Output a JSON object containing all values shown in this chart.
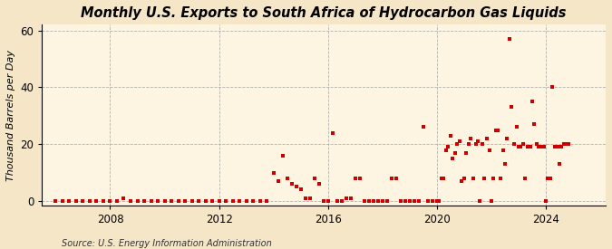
{
  "title": "Monthly U.S. Exports to South Africa of Hydrocarbon Gas Liquids",
  "ylabel": "Thousand Barrels per Day",
  "source": "Source: U.S. Energy Information Administration",
  "outer_bg": "#f5e6c8",
  "inner_bg": "#fdf5e2",
  "dot_color": "#cc0000",
  "xlim": [
    2005.5,
    2026.2
  ],
  "ylim": [
    -1.5,
    62
  ],
  "yticks": [
    0,
    20,
    40,
    60
  ],
  "xticks": [
    2008,
    2012,
    2016,
    2020,
    2024
  ],
  "data": [
    [
      2006.0,
      0
    ],
    [
      2006.25,
      0
    ],
    [
      2006.5,
      0
    ],
    [
      2006.75,
      0
    ],
    [
      2007.0,
      0
    ],
    [
      2007.25,
      0
    ],
    [
      2007.5,
      0
    ],
    [
      2007.75,
      0
    ],
    [
      2008.0,
      0
    ],
    [
      2008.25,
      0
    ],
    [
      2008.5,
      1
    ],
    [
      2008.75,
      0
    ],
    [
      2009.0,
      0
    ],
    [
      2009.25,
      0
    ],
    [
      2009.5,
      0
    ],
    [
      2009.75,
      0
    ],
    [
      2010.0,
      0
    ],
    [
      2010.25,
      0
    ],
    [
      2010.5,
      0
    ],
    [
      2010.75,
      0
    ],
    [
      2011.0,
      0
    ],
    [
      2011.25,
      0
    ],
    [
      2011.5,
      0
    ],
    [
      2011.75,
      0
    ],
    [
      2012.0,
      0
    ],
    [
      2012.25,
      0
    ],
    [
      2012.5,
      0
    ],
    [
      2012.75,
      0
    ],
    [
      2013.0,
      0
    ],
    [
      2013.25,
      0
    ],
    [
      2013.5,
      0
    ],
    [
      2013.75,
      0
    ],
    [
      2014.0,
      10
    ],
    [
      2014.17,
      7
    ],
    [
      2014.33,
      16
    ],
    [
      2014.5,
      8
    ],
    [
      2014.67,
      6
    ],
    [
      2014.83,
      5
    ],
    [
      2015.0,
      4
    ],
    [
      2015.17,
      1
    ],
    [
      2015.33,
      1
    ],
    [
      2015.5,
      8
    ],
    [
      2015.67,
      6
    ],
    [
      2015.83,
      0
    ],
    [
      2016.0,
      0
    ],
    [
      2016.17,
      24
    ],
    [
      2016.33,
      0
    ],
    [
      2016.5,
      0
    ],
    [
      2016.67,
      1
    ],
    [
      2016.83,
      1
    ],
    [
      2017.0,
      8
    ],
    [
      2017.17,
      8
    ],
    [
      2017.33,
      0
    ],
    [
      2017.5,
      0
    ],
    [
      2017.67,
      0
    ],
    [
      2017.83,
      0
    ],
    [
      2018.0,
      0
    ],
    [
      2018.17,
      0
    ],
    [
      2018.33,
      8
    ],
    [
      2018.5,
      8
    ],
    [
      2018.67,
      0
    ],
    [
      2018.83,
      0
    ],
    [
      2019.0,
      0
    ],
    [
      2019.17,
      0
    ],
    [
      2019.33,
      0
    ],
    [
      2019.5,
      26
    ],
    [
      2019.67,
      0
    ],
    [
      2019.83,
      0
    ],
    [
      2020.0,
      0
    ],
    [
      2020.08,
      0
    ],
    [
      2020.17,
      8
    ],
    [
      2020.25,
      8
    ],
    [
      2020.33,
      18
    ],
    [
      2020.42,
      19
    ],
    [
      2020.5,
      23
    ],
    [
      2020.58,
      15
    ],
    [
      2020.67,
      17
    ],
    [
      2020.75,
      20
    ],
    [
      2020.83,
      21
    ],
    [
      2020.92,
      7
    ],
    [
      2021.0,
      8
    ],
    [
      2021.08,
      17
    ],
    [
      2021.17,
      20
    ],
    [
      2021.25,
      22
    ],
    [
      2021.33,
      8
    ],
    [
      2021.42,
      20
    ],
    [
      2021.5,
      21
    ],
    [
      2021.58,
      0
    ],
    [
      2021.67,
      20
    ],
    [
      2021.75,
      8
    ],
    [
      2021.83,
      22
    ],
    [
      2021.92,
      18
    ],
    [
      2022.0,
      0
    ],
    [
      2022.08,
      8
    ],
    [
      2022.17,
      25
    ],
    [
      2022.25,
      25
    ],
    [
      2022.33,
      8
    ],
    [
      2022.42,
      18
    ],
    [
      2022.5,
      13
    ],
    [
      2022.58,
      22
    ],
    [
      2022.67,
      57
    ],
    [
      2022.75,
      33
    ],
    [
      2022.83,
      20
    ],
    [
      2022.92,
      26
    ],
    [
      2023.0,
      19
    ],
    [
      2023.08,
      19
    ],
    [
      2023.17,
      20
    ],
    [
      2023.25,
      8
    ],
    [
      2023.33,
      19
    ],
    [
      2023.42,
      19
    ],
    [
      2023.5,
      35
    ],
    [
      2023.58,
      27
    ],
    [
      2023.67,
      20
    ],
    [
      2023.75,
      19
    ],
    [
      2023.83,
      19
    ],
    [
      2023.92,
      19
    ],
    [
      2024.0,
      0
    ],
    [
      2024.08,
      8
    ],
    [
      2024.17,
      8
    ],
    [
      2024.25,
      40
    ],
    [
      2024.33,
      19
    ],
    [
      2024.42,
      19
    ],
    [
      2024.5,
      13
    ],
    [
      2024.58,
      19
    ],
    [
      2024.67,
      20
    ],
    [
      2024.75,
      20
    ],
    [
      2024.83,
      20
    ]
  ]
}
